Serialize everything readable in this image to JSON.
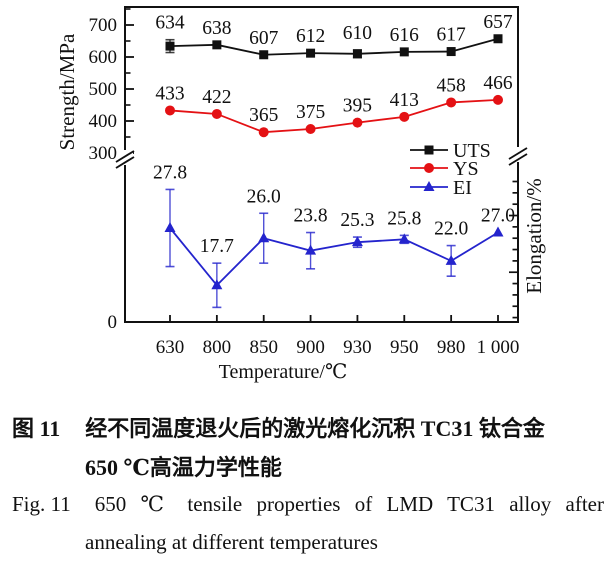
{
  "chart_data": {
    "type": "line",
    "categories": [
      630,
      800,
      850,
      900,
      930,
      950,
      980,
      1000
    ],
    "x_tick_labels": [
      "630",
      "800",
      "850",
      "900",
      "930",
      "950",
      "980",
      "1 000"
    ],
    "xlabel": "Temperature/℃",
    "ylabel_left": "Strength/MPa",
    "ylabel_right": "Elongation/%",
    "left_axis": {
      "major_ticks": [
        700,
        600,
        500,
        400,
        300
      ],
      "minor_ticks": [
        750,
        650,
        550,
        450,
        350
      ],
      "zero_label": "0",
      "axis_break": true
    },
    "right_axis": {
      "minor_step_percent": 2,
      "major_every_percent": 10,
      "range_percent": [
        12,
        36
      ],
      "axis_break": true
    },
    "series": [
      {
        "name": "UTS",
        "axis": "strength",
        "marker": "square",
        "color": "#111111",
        "values": [
          634,
          638,
          607,
          612,
          610,
          616,
          617,
          657
        ],
        "labels": [
          "634",
          "638",
          "607",
          "612",
          "610",
          "616",
          "617",
          "657"
        ],
        "errors": [
          20,
          0,
          0,
          0,
          12,
          0,
          0,
          0
        ]
      },
      {
        "name": "YS",
        "axis": "strength",
        "marker": "circle",
        "color": "#e41114",
        "values": [
          433,
          422,
          365,
          375,
          395,
          413,
          458,
          466
        ],
        "labels": [
          "433",
          "422",
          "365",
          "375",
          "395",
          "413",
          "458",
          "466"
        ],
        "errors": [
          0,
          0,
          0,
          0,
          0,
          0,
          0,
          0
        ]
      },
      {
        "name": "EI",
        "axis": "elongation",
        "marker": "triangle",
        "color": "#2424cd",
        "values": [
          27.8,
          17.7,
          26.0,
          23.8,
          25.3,
          25.8,
          22.0,
          27.0
        ],
        "labels": [
          "27.8",
          "17.7",
          "26.0",
          "23.8",
          "25.3",
          "25.8",
          "22.0",
          "27.0"
        ],
        "errors": [
          6.8,
          3.9,
          4.4,
          3.2,
          0.9,
          0.7,
          2.7,
          0
        ]
      }
    ],
    "legend": [
      "UTS",
      "YS",
      "EI"
    ],
    "legend_position": "inside-right-middle",
    "grid": false
  },
  "caption": {
    "zh_line1_prefix": "图 11",
    "zh_line1_text": "经不同温度退火后的激光熔化沉积 TC31 钛合金",
    "zh_line2": "650 ℃高温力学性能",
    "en_line1_prefix": "Fig. 11",
    "en_line1_text": "650 ℃ tensile properties of LMD TC31 alloy after",
    "en_line2": "annealing at different temperatures"
  },
  "colors": {
    "uts": "#111111",
    "ys": "#e41114",
    "ei": "#2424cd",
    "axis": "#111111",
    "background": "#ffffff"
  }
}
